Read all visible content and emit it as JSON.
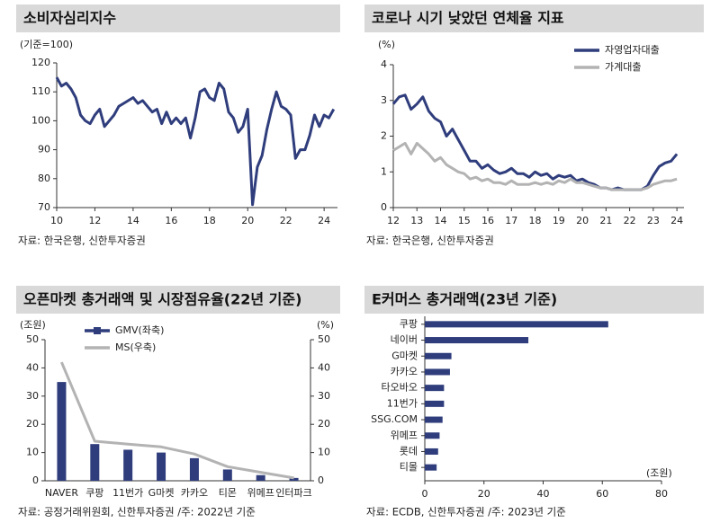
{
  "chart_data": [
    {
      "type": "line",
      "title": "소비자심리지수",
      "unit": "(기준=100)",
      "source": "자료: 한국은행, 신한투자증권",
      "xlim": [
        10,
        24.7
      ],
      "xticks": [
        10,
        12,
        14,
        16,
        18,
        20,
        22,
        24
      ],
      "ylim": [
        70,
        120
      ],
      "yticks": [
        70,
        80,
        90,
        100,
        110,
        120
      ],
      "x": [
        10.0,
        10.25,
        10.5,
        10.75,
        11.0,
        11.25,
        11.5,
        11.75,
        12.0,
        12.25,
        12.5,
        12.75,
        13.0,
        13.25,
        13.5,
        13.75,
        14.0,
        14.25,
        14.5,
        14.75,
        15.0,
        15.25,
        15.5,
        15.75,
        16.0,
        16.25,
        16.5,
        16.75,
        17.0,
        17.25,
        17.5,
        17.75,
        18.0,
        18.25,
        18.5,
        18.75,
        19.0,
        19.25,
        19.5,
        19.75,
        20.0,
        20.25,
        20.5,
        20.75,
        21.0,
        21.25,
        21.5,
        21.75,
        22.0,
        22.25,
        22.5,
        22.75,
        23.0,
        23.25,
        23.5,
        23.75,
        24.0,
        24.25,
        24.5
      ],
      "series": [
        {
          "color": "#2f3d7c",
          "values": [
            115,
            112,
            113,
            111,
            108,
            102,
            100,
            99,
            102,
            104,
            98,
            100,
            102,
            105,
            106,
            107,
            108,
            106,
            107,
            105,
            103,
            104,
            99,
            103,
            99,
            101,
            99,
            101,
            94,
            101,
            110,
            111,
            108,
            107,
            113,
            111,
            103,
            101,
            96,
            98,
            104,
            71,
            84,
            88,
            97,
            104,
            110,
            105,
            104,
            102,
            87,
            90,
            90,
            95,
            102,
            98,
            102,
            101,
            104
          ]
        }
      ]
    },
    {
      "type": "line",
      "title": "코로나 시기 낮았던 연체율 지표",
      "unit": "(%)",
      "source": "자료: 한국은행, 신한투자증권",
      "xlim": [
        12,
        24.3
      ],
      "xticks": [
        12,
        13,
        14,
        15,
        16,
        17,
        18,
        19,
        20,
        21,
        22,
        23,
        24
      ],
      "ylim": [
        0,
        4
      ],
      "yticks": [
        0,
        1,
        2,
        3,
        4
      ],
      "legend": "top-right",
      "x": [
        12.0,
        12.25,
        12.5,
        12.75,
        13.0,
        13.25,
        13.5,
        13.75,
        14.0,
        14.25,
        14.5,
        14.75,
        15.0,
        15.25,
        15.5,
        15.75,
        16.0,
        16.25,
        16.5,
        16.75,
        17.0,
        17.25,
        17.5,
        17.75,
        18.0,
        18.25,
        18.5,
        18.75,
        19.0,
        19.25,
        19.5,
        19.75,
        20.0,
        20.25,
        20.5,
        20.75,
        21.0,
        21.25,
        21.5,
        21.75,
        22.0,
        22.25,
        22.5,
        22.75,
        23.0,
        23.25,
        23.5,
        23.75,
        24.0
      ],
      "series": [
        {
          "name": "자영업자대출",
          "color": "#2f3d7c",
          "values": [
            2.9,
            3.1,
            3.15,
            2.75,
            2.9,
            3.1,
            2.7,
            2.5,
            2.4,
            2.0,
            2.2,
            1.9,
            1.6,
            1.3,
            1.3,
            1.1,
            1.2,
            1.05,
            0.95,
            1.0,
            1.1,
            0.95,
            0.95,
            0.85,
            1.0,
            0.9,
            0.95,
            0.8,
            0.9,
            0.85,
            0.9,
            0.75,
            0.8,
            0.7,
            0.65,
            0.55,
            0.55,
            0.5,
            0.55,
            0.5,
            0.5,
            0.5,
            0.5,
            0.6,
            0.9,
            1.15,
            1.25,
            1.3,
            1.5
          ]
        },
        {
          "name": "가계대출",
          "color": "#b3b3b3",
          "values": [
            1.6,
            1.7,
            1.8,
            1.5,
            1.8,
            1.65,
            1.5,
            1.3,
            1.4,
            1.2,
            1.1,
            1.0,
            0.95,
            0.8,
            0.85,
            0.75,
            0.8,
            0.7,
            0.7,
            0.65,
            0.75,
            0.65,
            0.65,
            0.65,
            0.7,
            0.65,
            0.7,
            0.65,
            0.75,
            0.7,
            0.8,
            0.7,
            0.7,
            0.65,
            0.6,
            0.55,
            0.55,
            0.5,
            0.5,
            0.5,
            0.5,
            0.5,
            0.5,
            0.55,
            0.65,
            0.7,
            0.75,
            0.75,
            0.8
          ]
        }
      ]
    },
    {
      "type": "bar",
      "title": "오픈마켓 총거래액 및 시장점유율(22년 기준)",
      "unit": "(조원)",
      "unit2": "(%)",
      "source": "자료: 공정거래위원회, 신한투자증권 /주: 2022년 기준",
      "ylim": [
        0,
        50
      ],
      "yticks": [
        0,
        10,
        20,
        30,
        40,
        50
      ],
      "y2lim": [
        0,
        50
      ],
      "y2ticks": [
        0,
        10,
        20,
        30,
        40,
        50
      ],
      "legend": "top-left",
      "categories": [
        "NAVER",
        "쿠팡",
        "11번가",
        "G마켓",
        "카카오",
        "티몬",
        "위메프",
        "인터파크"
      ],
      "series": [
        {
          "name": "GMV(좌축)",
          "type": "bar",
          "color": "#2f3d7c",
          "values": [
            35,
            13,
            11,
            10,
            8,
            4,
            2,
            1
          ]
        },
        {
          "name": "MS(우축)",
          "type": "line",
          "axis": "y2",
          "color": "#b3b3b3",
          "values": [
            42,
            14,
            13,
            12,
            9.5,
            5,
            3,
            1
          ]
        }
      ]
    },
    {
      "type": "hbar",
      "title": "E커머스 총거래액(23년 기준)",
      "unit": "(조원)",
      "source": "자료: ECDB, 신한투자증권 /주: 2023년 기준",
      "xlim": [
        0,
        80
      ],
      "xticks": [
        0,
        20,
        40,
        60,
        80
      ],
      "categories": [
        "쿠팡",
        "네이버",
        "G마켓",
        "카카오",
        "타오바오",
        "11번가",
        "SSG.COM",
        "위메프",
        "롯데",
        "티몰"
      ],
      "color": "#2f3d7c",
      "values": [
        62,
        35,
        9,
        8.5,
        6.5,
        6.5,
        6,
        5,
        4.5,
        4
      ]
    }
  ]
}
